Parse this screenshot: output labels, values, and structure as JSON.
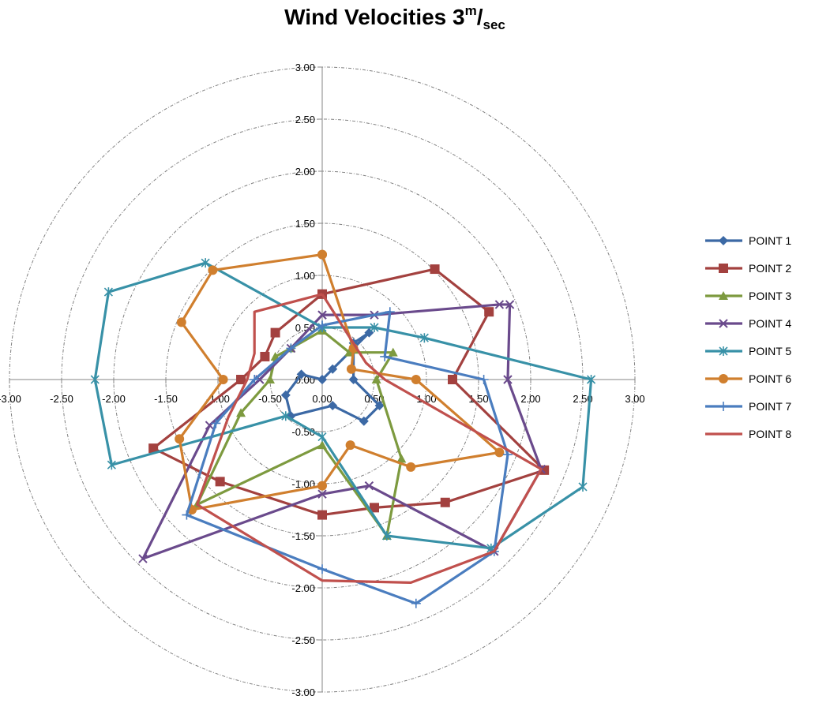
{
  "chart_data": {
    "type": "scatter",
    "title_main": "Wind Velocities 3",
    "title_sup": "m",
    "title_slash": "/",
    "title_sub": "sec",
    "xlabel": "",
    "ylabel": "",
    "xlim": [
      -3,
      3
    ],
    "ylim": [
      -3,
      3
    ],
    "x_tick_labels": [
      "-3.00",
      "-2.50",
      "-2.00",
      "-1.50",
      "-1.00",
      "-0.50",
      "0.00",
      "0.50",
      "1.00",
      "1.50",
      "2.00",
      "2.50",
      "3.00"
    ],
    "y_tick_labels": [
      "3.00",
      "2.50",
      "2.00",
      "1.50",
      "1.00",
      "0.50",
      "0.00",
      "-0.50",
      "-1.00",
      "-1.50",
      "-2.00",
      "-2.50",
      "-3.00"
    ],
    "grid_circles": [
      0.5,
      1.0,
      1.5,
      2.0,
      2.5,
      3.0
    ],
    "legend_position": "right",
    "series": [
      {
        "name": "POINT 1",
        "color": "#3c69a5",
        "marker": "diamond",
        "points": [
          [
            0.0,
            0.0
          ],
          [
            0.1,
            0.1
          ],
          [
            0.45,
            0.45
          ],
          [
            0.3,
            0.35
          ],
          [
            0.3,
            0.0
          ],
          [
            0.55,
            -0.25
          ],
          [
            0.4,
            -0.4
          ],
          [
            0.1,
            -0.25
          ],
          [
            -0.3,
            -0.35
          ],
          [
            -0.35,
            -0.15
          ],
          [
            -0.2,
            0.05
          ],
          [
            0.0,
            0.0
          ]
        ]
      },
      {
        "name": "POINT 2",
        "color": "#a3413f",
        "marker": "square",
        "points": [
          [
            0.0,
            0.82
          ],
          [
            1.08,
            1.06
          ],
          [
            1.6,
            0.65
          ],
          [
            1.25,
            0.0
          ],
          [
            2.13,
            -0.87
          ],
          [
            1.18,
            -1.18
          ],
          [
            0.5,
            -1.23
          ],
          [
            0.0,
            -1.3
          ],
          [
            -0.98,
            -0.98
          ],
          [
            -1.62,
            -0.66
          ],
          [
            -0.78,
            0.0
          ],
          [
            -0.55,
            0.22
          ],
          [
            -0.45,
            0.45
          ],
          [
            0.0,
            0.82
          ]
        ]
      },
      {
        "name": "POINT 3",
        "color": "#7d9a3f",
        "marker": "triangle",
        "points": [
          [
            0.0,
            0.47
          ],
          [
            0.26,
            0.26
          ],
          [
            0.68,
            0.26
          ],
          [
            0.52,
            0.0
          ],
          [
            0.76,
            -0.76
          ],
          [
            0.62,
            -1.5
          ],
          [
            0.0,
            -0.63
          ],
          [
            -1.2,
            -1.2
          ],
          [
            -0.78,
            -0.32
          ],
          [
            -0.5,
            0.0
          ],
          [
            -0.45,
            0.22
          ],
          [
            -0.3,
            0.3
          ],
          [
            0.0,
            0.47
          ]
        ]
      },
      {
        "name": "POINT 4",
        "color": "#6a4a8c",
        "marker": "x",
        "points": [
          [
            0.0,
            0.62
          ],
          [
            0.5,
            0.62
          ],
          [
            1.7,
            0.72
          ],
          [
            1.8,
            0.72
          ],
          [
            1.78,
            0.0
          ],
          [
            2.1,
            -0.86
          ],
          [
            1.65,
            -1.65
          ],
          [
            0.45,
            -1.02
          ],
          [
            0.0,
            -1.1
          ],
          [
            -1.72,
            -1.72
          ],
          [
            -1.08,
            -0.44
          ],
          [
            -0.6,
            0.0
          ],
          [
            -0.3,
            0.3
          ],
          [
            0.0,
            0.62
          ]
        ]
      },
      {
        "name": "POINT 5",
        "color": "#3891a7",
        "marker": "asterisk",
        "points": [
          [
            0.0,
            0.5
          ],
          [
            0.5,
            0.5
          ],
          [
            0.98,
            0.4
          ],
          [
            2.58,
            0.0
          ],
          [
            2.5,
            -1.03
          ],
          [
            1.62,
            -1.62
          ],
          [
            0.62,
            -1.5
          ],
          [
            0.0,
            -0.55
          ],
          [
            -0.35,
            -0.35
          ],
          [
            -2.02,
            -0.82
          ],
          [
            -2.18,
            0.0
          ],
          [
            -2.05,
            0.84
          ],
          [
            -1.12,
            1.12
          ],
          [
            0.0,
            0.5
          ]
        ]
      },
      {
        "name": "POINT 6",
        "color": "#d07f2e",
        "marker": "circle",
        "points": [
          [
            0.0,
            1.2
          ],
          [
            0.3,
            0.3
          ],
          [
            0.28,
            0.1
          ],
          [
            0.9,
            0.0
          ],
          [
            1.7,
            -0.7
          ],
          [
            0.85,
            -0.84
          ],
          [
            0.27,
            -0.63
          ],
          [
            0.0,
            -1.02
          ],
          [
            -1.25,
            -1.25
          ],
          [
            -1.37,
            -0.57
          ],
          [
            -0.95,
            0.0
          ],
          [
            -1.35,
            0.55
          ],
          [
            -1.05,
            1.05
          ],
          [
            0.0,
            1.2
          ]
        ]
      },
      {
        "name": "POINT 7",
        "color": "#4a7dbf",
        "marker": "plus",
        "points": [
          [
            0.0,
            0.52
          ],
          [
            0.65,
            0.65
          ],
          [
            0.6,
            0.22
          ],
          [
            1.55,
            0.0
          ],
          [
            1.78,
            -0.72
          ],
          [
            1.65,
            -1.65
          ],
          [
            0.9,
            -2.15
          ],
          [
            0.0,
            -1.82
          ],
          [
            -1.3,
            -1.3
          ],
          [
            -1.02,
            -0.42
          ],
          [
            -0.65,
            0.0
          ],
          [
            -0.3,
            0.3
          ],
          [
            0.0,
            0.52
          ]
        ]
      },
      {
        "name": "POINT 8",
        "color": "#c0504d",
        "marker": "none",
        "points": [
          [
            0.0,
            0.82
          ],
          [
            0.33,
            0.3
          ],
          [
            0.42,
            0.16
          ],
          [
            0.6,
            0.0
          ],
          [
            2.1,
            -0.86
          ],
          [
            1.65,
            -1.65
          ],
          [
            0.85,
            -1.95
          ],
          [
            0.0,
            -1.93
          ],
          [
            -1.2,
            -1.2
          ],
          [
            -0.9,
            -0.36
          ],
          [
            -0.72,
            0.0
          ],
          [
            -0.65,
            0.25
          ],
          [
            -0.65,
            0.65
          ],
          [
            0.0,
            0.82
          ]
        ]
      }
    ]
  }
}
